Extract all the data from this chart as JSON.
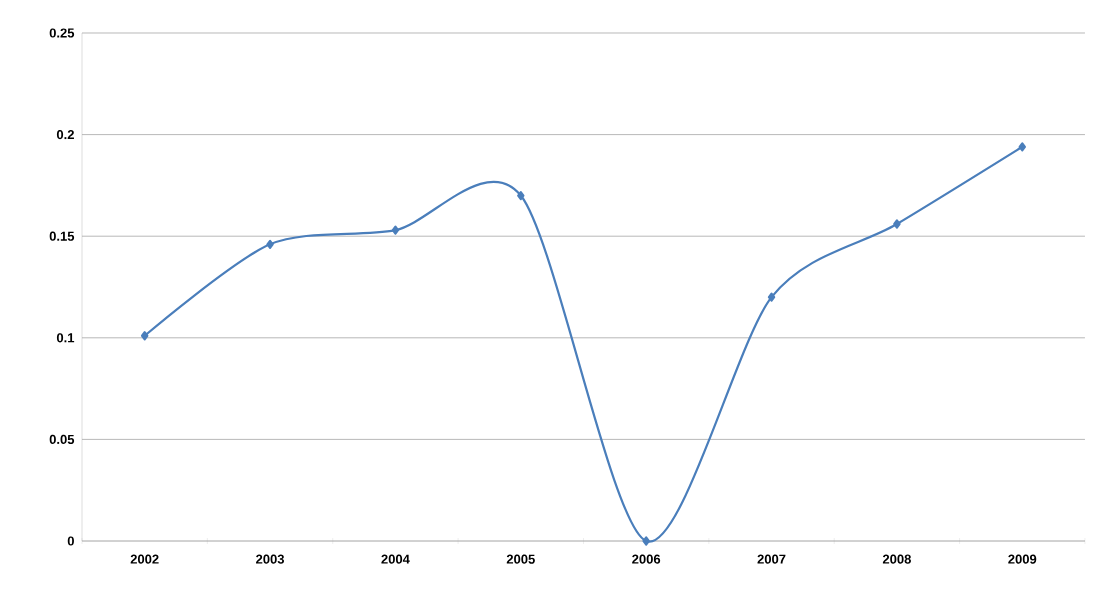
{
  "chart_data": {
    "type": "line",
    "categories": [
      "2002",
      "2003",
      "2004",
      "2005",
      "2006",
      "2007",
      "2008",
      "2009"
    ],
    "series": [
      {
        "color": "#4a7ebb",
        "values": [
          0.101,
          0.146,
          0.153,
          0.17,
          0,
          0.12,
          0.156,
          0.194
        ]
      }
    ],
    "ylim": [
      0,
      0.25
    ],
    "yticks": [
      0,
      0.05,
      0.1,
      0.15,
      0.2,
      0.25
    ],
    "grid": "y",
    "marker": "diamond",
    "line_style": "solid"
  }
}
